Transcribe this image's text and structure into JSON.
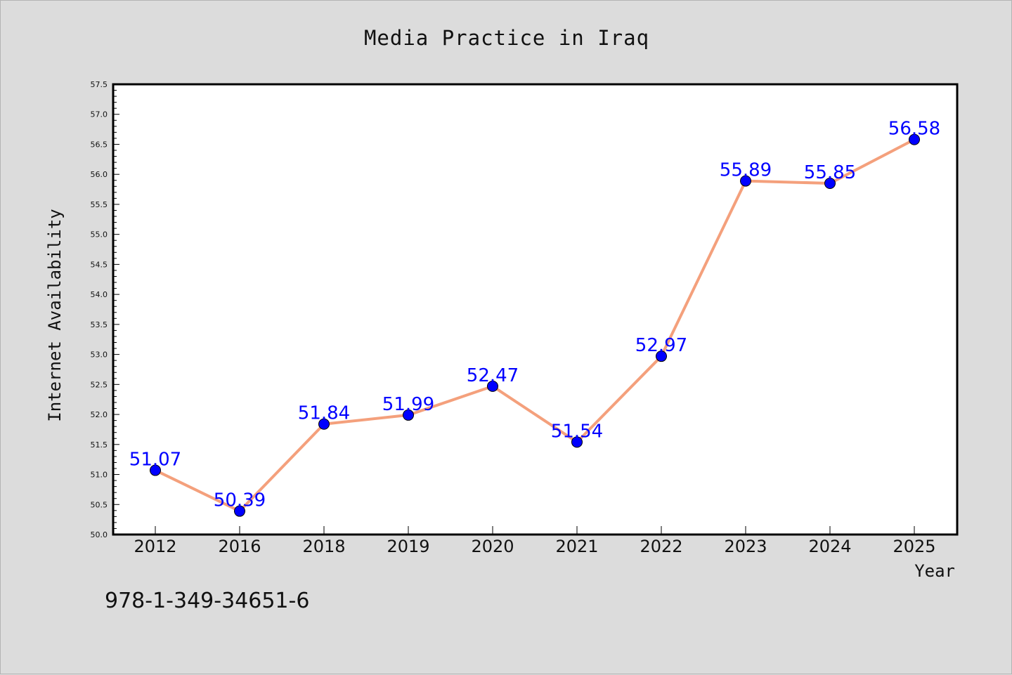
{
  "chart_data": {
    "type": "line",
    "title": "Media Practice in Iraq",
    "xlabel": "Year",
    "ylabel": "Internet Availability",
    "categories": [
      "2012",
      "2016",
      "2018",
      "2019",
      "2020",
      "2021",
      "2022",
      "2023",
      "2024",
      "2025"
    ],
    "series": [
      {
        "values": [
          51.07,
          50.39,
          51.84,
          51.99,
          52.47,
          51.54,
          52.97,
          55.89,
          55.85,
          56.58
        ],
        "data_labels": [
          "51.07",
          "50.39",
          "51.84",
          "51.99",
          "52.47",
          "51.54",
          "52.97",
          "55.89",
          "55.85",
          "56.58"
        ],
        "line_color": "#f4a07c",
        "marker_color": "#0000ff"
      }
    ],
    "ylim": [
      50.0,
      57.5
    ],
    "yticks": [
      "50.0",
      "50.5",
      "51.0",
      "51.5",
      "52.0",
      "52.5",
      "53.0",
      "53.5",
      "54.0",
      "54.5",
      "55.0",
      "55.5",
      "56.0",
      "56.5",
      "57.0",
      "57.5"
    ],
    "grid": false,
    "legend": "none"
  },
  "footer": {
    "isbn": "978-1-349-34651-6"
  },
  "colors": {
    "background": "#dcdcdc",
    "plot_background": "#ffffff",
    "line": "#f4a07c",
    "marker": "#0000ff",
    "data_label": "#0000ff"
  }
}
